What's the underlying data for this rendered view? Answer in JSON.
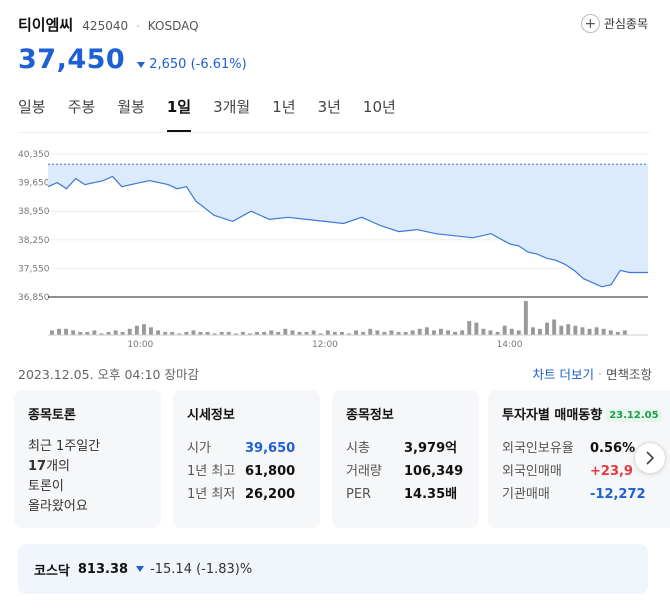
{
  "stock": {
    "name": "티이엠씨",
    "code": "425040",
    "separator": "·",
    "market": "KOSDAQ",
    "price": "37,450",
    "change": "2,650",
    "change_pct": "(-6.61%)",
    "watchlist_label": "관심종목"
  },
  "tabs": [
    {
      "label": "일봉"
    },
    {
      "label": "주봉"
    },
    {
      "label": "월봉"
    },
    {
      "label": "1일",
      "active": true
    },
    {
      "label": "3개월"
    },
    {
      "label": "1년"
    },
    {
      "label": "3년"
    },
    {
      "label": "10년"
    }
  ],
  "chart_data": {
    "type": "area",
    "y_ticks": [
      "40,350",
      "39,650",
      "38,950",
      "38,250",
      "37,550",
      "36,850"
    ],
    "y_tick_values": [
      40350,
      39650,
      38950,
      38250,
      37550,
      36850
    ],
    "x_ticks": [
      "10:00",
      "12:00",
      "14:00"
    ],
    "x_tick_times": [
      10.0,
      12.0,
      14.0
    ],
    "ylim": [
      36850,
      40350
    ],
    "x_range": [
      9.0,
      15.5
    ],
    "reference_price": 40100,
    "series": [
      {
        "x": [
          9.0,
          9.1,
          9.2,
          9.3,
          9.4,
          9.5,
          9.6,
          9.7,
          9.8,
          9.9,
          10.0,
          10.1,
          10.2,
          10.3,
          10.4,
          10.5,
          10.6,
          10.8,
          11.0,
          11.2,
          11.4,
          11.6,
          11.8,
          12.0,
          12.2,
          12.4,
          12.6,
          12.8,
          13.0,
          13.2,
          13.4,
          13.6,
          13.8,
          14.0,
          14.1,
          14.2,
          14.3,
          14.4,
          14.5,
          14.6,
          14.7,
          14.8,
          14.9,
          15.0,
          15.1,
          15.2,
          15.3,
          15.4,
          15.5
        ],
        "values": [
          39550,
          39650,
          39500,
          39750,
          39600,
          39650,
          39700,
          39800,
          39550,
          39600,
          39650,
          39700,
          39650,
          39600,
          39500,
          39550,
          39200,
          38850,
          38700,
          38950,
          38750,
          38800,
          38750,
          38700,
          38650,
          38800,
          38600,
          38450,
          38500,
          38400,
          38350,
          38300,
          38400,
          38150,
          38100,
          37950,
          37900,
          37800,
          37750,
          37650,
          37500,
          37300,
          37200,
          37100,
          37150,
          37500,
          37450,
          37450,
          37450
        ]
      }
    ],
    "volume": [
      3,
      4,
      4,
      3,
      2,
      2,
      3,
      1,
      2,
      3,
      2,
      4,
      6,
      7,
      5,
      3,
      2,
      2,
      1,
      2,
      3,
      2,
      2,
      1,
      2,
      2,
      1,
      2,
      1,
      2,
      2,
      3,
      2,
      4,
      3,
      2,
      2,
      3,
      1,
      3,
      2,
      2,
      1,
      3,
      2,
      4,
      3,
      2,
      3,
      2,
      2,
      3,
      4,
      5,
      3,
      4,
      3,
      2,
      3,
      9,
      8,
      4,
      3,
      2,
      6,
      4,
      3,
      22,
      5,
      4,
      8,
      10,
      6,
      7,
      6,
      5,
      4,
      5,
      4,
      3,
      2,
      3
    ]
  },
  "footer": {
    "timestamp": "2023.12.05. 오후 04:10 장마감",
    "chart_more": "차트 더보기",
    "separator": "·",
    "disclaimer": "면책조항"
  },
  "cards": {
    "forum": {
      "title": "종목토론",
      "line1": "최근 1주일간",
      "count": "17",
      "line2_suffix": "개의",
      "line3": "토론이",
      "line4": "올라왔어요"
    },
    "market_info": {
      "title": "시세정보",
      "rows": [
        {
          "label": "시가",
          "value": "39,650"
        },
        {
          "label": "1년 최고",
          "value": "61,800"
        },
        {
          "label": "1년 최저",
          "value": "26,200"
        }
      ]
    },
    "stock_info": {
      "title": "종목정보",
      "rows": [
        {
          "label": "시총",
          "value": "3,979억"
        },
        {
          "label": "거래량",
          "value": "106,349"
        },
        {
          "label": "PER",
          "value": "14.35배"
        }
      ]
    },
    "investor": {
      "title": "투자자별 매매동향",
      "date_badge": "23.12.05",
      "rows": [
        {
          "label": "외국인보유율",
          "value": "0.56%"
        },
        {
          "label": "외국인매매",
          "value": "+23,9"
        },
        {
          "label": "기관매매",
          "value": "-12,272"
        }
      ]
    }
  },
  "index": {
    "name": "코스닥",
    "value": "813.38",
    "change": "-15.14 (-1.83)%"
  },
  "colors": {
    "accent_blue": "#1d5fd4",
    "down_blue": "#1d5fd4",
    "up_red": "#e5393c",
    "area_fill": "#dcebfb",
    "line": "#3b78d8",
    "volume_bar": "#999999"
  }
}
